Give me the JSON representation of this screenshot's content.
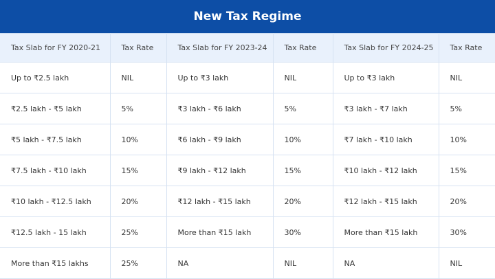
{
  "title": "New Tax Regime",
  "headers": [
    "Tax Slab for FY 2020-21",
    "Tax Rate",
    "Tax Slab for FY 2023-24",
    "Tax Rate",
    "Tax Slab for FY 2024-25",
    "Tax Rate"
  ],
  "rows": [
    [
      "Up to ₹2.5 lakh",
      "NIL",
      "Up to ₹3 lakh",
      "NIL",
      "Up to ₹3 lakh",
      "NIL"
    ],
    [
      "₹2.5 lakh - ₹5 lakh",
      "5%",
      "₹3 lakh - ₹6 lakh",
      "5%",
      "₹3 lakh - ₹7 lakh",
      "5%"
    ],
    [
      "₹5 lakh - ₹7.5 lakh",
      "10%",
      "₹6 lakh - ₹9 lakh",
      "10%",
      "₹7 lakh - ₹10 lakh",
      "10%"
    ],
    [
      "₹7.5 lakh - ₹10 lakh",
      "15%",
      "₹9 lakh - ₹12 lakh",
      "15%",
      "₹10 lakh - ₹12 lakh",
      "15%"
    ],
    [
      "₹10 lakh - ₹12.5 lakh",
      "20%",
      "₹12 lakh - ₹15 lakh",
      "20%",
      "₹12 lakh - ₹15 lakh",
      "20%"
    ],
    [
      "₹12.5 lakh - 15 lakh",
      "25%",
      "More than ₹15 lakh",
      "30%",
      "More than ₹15 lakh",
      "30%"
    ],
    [
      "More than ₹15 lakhs",
      "25%",
      "NA",
      "NIL",
      "NA",
      "NIL"
    ]
  ],
  "colors": {
    "title_bg": "#0d4ea6",
    "header_bg": "#e9f1fc",
    "border": "#d6e2f2"
  }
}
